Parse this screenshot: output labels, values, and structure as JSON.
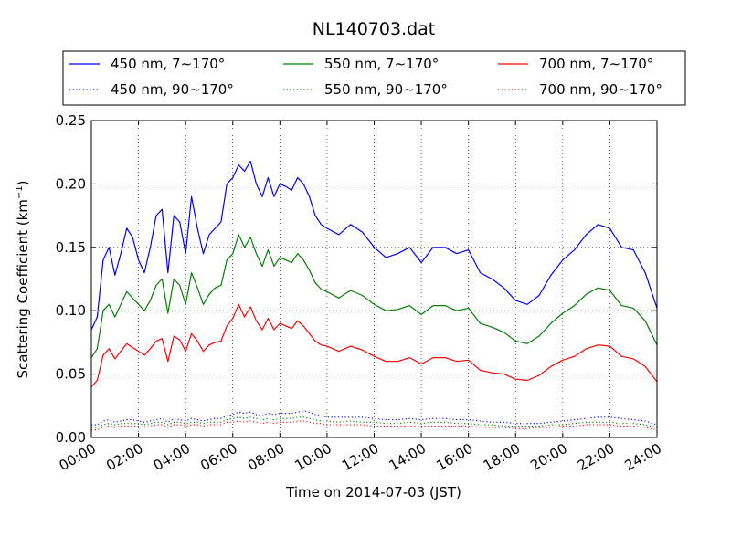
{
  "chart_data": {
    "type": "line",
    "title": "NL140703.dat",
    "xlabel": "Time on 2014-07-03 (JST)",
    "ylabel": "Scattering Coefficient (km",
    "ylabel_sup": "−1",
    "ylabel_close": ")",
    "xlim": [
      0,
      24
    ],
    "ylim": [
      0,
      0.25
    ],
    "grid": true,
    "legend_position": "top, above plot (3 columns)",
    "x_unit": "hour of day",
    "x_ticks": [
      0,
      2,
      4,
      6,
      8,
      10,
      12,
      14,
      16,
      18,
      20,
      22,
      24
    ],
    "x_tick_labels": [
      "00:00",
      "02:00",
      "04:00",
      "06:00",
      "08:00",
      "10:00",
      "12:00",
      "14:00",
      "16:00",
      "18:00",
      "20:00",
      "22:00",
      "24:00"
    ],
    "y_ticks": [
      0.0,
      0.05,
      0.1,
      0.15,
      0.2,
      0.25
    ],
    "y_tick_labels": [
      "0.00",
      "0.05",
      "0.10",
      "0.15",
      "0.20",
      "0.25"
    ],
    "x": [
      0.0,
      0.25,
      0.5,
      0.75,
      1.0,
      1.25,
      1.5,
      1.75,
      2.0,
      2.25,
      2.5,
      2.75,
      3.0,
      3.25,
      3.5,
      3.75,
      4.0,
      4.25,
      4.5,
      4.75,
      5.0,
      5.25,
      5.5,
      5.75,
      6.0,
      6.25,
      6.5,
      6.75,
      7.0,
      7.25,
      7.5,
      7.75,
      8.0,
      8.25,
      8.5,
      8.75,
      9.0,
      9.25,
      9.5,
      9.75,
      10.0,
      10.5,
      11.0,
      11.5,
      12.0,
      12.5,
      13.0,
      13.5,
      14.0,
      14.5,
      15.0,
      15.5,
      16.0,
      16.5,
      17.0,
      17.5,
      18.0,
      18.5,
      19.0,
      19.5,
      20.0,
      20.5,
      21.0,
      21.5,
      22.0,
      22.5,
      23.0,
      23.5,
      24.0
    ],
    "series": [
      {
        "name": "450 nm, 7∼170°",
        "color": "#0000ff",
        "style": "solid",
        "values": [
          0.085,
          0.095,
          0.14,
          0.15,
          0.128,
          0.145,
          0.165,
          0.158,
          0.14,
          0.13,
          0.15,
          0.175,
          0.18,
          0.13,
          0.175,
          0.17,
          0.145,
          0.19,
          0.165,
          0.145,
          0.16,
          0.165,
          0.17,
          0.2,
          0.205,
          0.215,
          0.21,
          0.218,
          0.2,
          0.19,
          0.205,
          0.19,
          0.2,
          0.198,
          0.195,
          0.205,
          0.2,
          0.19,
          0.175,
          0.168,
          0.165,
          0.16,
          0.168,
          0.162,
          0.15,
          0.142,
          0.145,
          0.15,
          0.138,
          0.15,
          0.15,
          0.145,
          0.148,
          0.13,
          0.125,
          0.118,
          0.108,
          0.105,
          0.112,
          0.128,
          0.14,
          0.148,
          0.16,
          0.168,
          0.165,
          0.15,
          0.148,
          0.13,
          0.102
        ]
      },
      {
        "name": "550 nm, 7∼170°",
        "color": "#008000",
        "style": "solid",
        "values": [
          0.063,
          0.07,
          0.1,
          0.105,
          0.095,
          0.105,
          0.115,
          0.11,
          0.105,
          0.1,
          0.108,
          0.12,
          0.125,
          0.098,
          0.125,
          0.12,
          0.105,
          0.13,
          0.118,
          0.105,
          0.113,
          0.118,
          0.12,
          0.14,
          0.145,
          0.16,
          0.15,
          0.158,
          0.145,
          0.135,
          0.148,
          0.135,
          0.142,
          0.14,
          0.138,
          0.145,
          0.14,
          0.132,
          0.122,
          0.117,
          0.115,
          0.11,
          0.116,
          0.112,
          0.105,
          0.1,
          0.101,
          0.104,
          0.097,
          0.104,
          0.104,
          0.1,
          0.102,
          0.09,
          0.087,
          0.083,
          0.076,
          0.074,
          0.08,
          0.09,
          0.098,
          0.104,
          0.113,
          0.118,
          0.116,
          0.104,
          0.102,
          0.092,
          0.073
        ]
      },
      {
        "name": "700 nm, 7∼170°",
        "color": "#ff0000",
        "style": "solid",
        "values": [
          0.04,
          0.045,
          0.065,
          0.07,
          0.062,
          0.068,
          0.074,
          0.071,
          0.068,
          0.065,
          0.07,
          0.076,
          0.078,
          0.06,
          0.08,
          0.077,
          0.068,
          0.082,
          0.076,
          0.068,
          0.073,
          0.075,
          0.076,
          0.088,
          0.094,
          0.105,
          0.095,
          0.103,
          0.092,
          0.085,
          0.094,
          0.085,
          0.09,
          0.088,
          0.086,
          0.092,
          0.088,
          0.082,
          0.076,
          0.073,
          0.072,
          0.068,
          0.072,
          0.069,
          0.064,
          0.06,
          0.06,
          0.063,
          0.058,
          0.063,
          0.063,
          0.06,
          0.061,
          0.053,
          0.051,
          0.05,
          0.046,
          0.045,
          0.049,
          0.056,
          0.061,
          0.064,
          0.07,
          0.073,
          0.072,
          0.064,
          0.062,
          0.056,
          0.044
        ]
      },
      {
        "name": "450 nm, 90∼170°",
        "color": "#0000ff",
        "style": "dotted",
        "values": [
          0.01,
          0.01,
          0.013,
          0.014,
          0.012,
          0.013,
          0.014,
          0.014,
          0.013,
          0.012,
          0.013,
          0.014,
          0.015,
          0.012,
          0.015,
          0.014,
          0.013,
          0.015,
          0.014,
          0.013,
          0.014,
          0.015,
          0.015,
          0.017,
          0.018,
          0.02,
          0.019,
          0.02,
          0.018,
          0.017,
          0.019,
          0.018,
          0.019,
          0.019,
          0.019,
          0.02,
          0.021,
          0.02,
          0.018,
          0.017,
          0.016,
          0.016,
          0.016,
          0.016,
          0.015,
          0.014,
          0.014,
          0.015,
          0.014,
          0.015,
          0.015,
          0.014,
          0.014,
          0.013,
          0.012,
          0.012,
          0.011,
          0.011,
          0.011,
          0.012,
          0.013,
          0.014,
          0.015,
          0.016,
          0.016,
          0.015,
          0.014,
          0.013,
          0.01
        ]
      },
      {
        "name": "550 nm, 90∼170°",
        "color": "#008000",
        "style": "dotted",
        "values": [
          0.008,
          0.008,
          0.01,
          0.011,
          0.01,
          0.011,
          0.011,
          0.011,
          0.011,
          0.01,
          0.011,
          0.012,
          0.012,
          0.01,
          0.012,
          0.012,
          0.011,
          0.012,
          0.012,
          0.011,
          0.012,
          0.012,
          0.012,
          0.014,
          0.015,
          0.016,
          0.015,
          0.016,
          0.015,
          0.014,
          0.015,
          0.014,
          0.015,
          0.015,
          0.015,
          0.016,
          0.016,
          0.015,
          0.014,
          0.013,
          0.013,
          0.012,
          0.013,
          0.012,
          0.012,
          0.011,
          0.011,
          0.012,
          0.011,
          0.012,
          0.012,
          0.011,
          0.011,
          0.01,
          0.01,
          0.009,
          0.009,
          0.009,
          0.009,
          0.01,
          0.01,
          0.011,
          0.012,
          0.012,
          0.012,
          0.011,
          0.011,
          0.01,
          0.008
        ]
      },
      {
        "name": "700 nm, 90∼170°",
        "color": "#ff0000",
        "style": "dotted",
        "values": [
          0.006,
          0.006,
          0.008,
          0.009,
          0.008,
          0.009,
          0.009,
          0.009,
          0.009,
          0.008,
          0.009,
          0.01,
          0.01,
          0.008,
          0.01,
          0.01,
          0.009,
          0.01,
          0.01,
          0.009,
          0.01,
          0.01,
          0.01,
          0.012,
          0.012,
          0.013,
          0.012,
          0.013,
          0.012,
          0.011,
          0.012,
          0.011,
          0.012,
          0.012,
          0.012,
          0.013,
          0.013,
          0.012,
          0.011,
          0.011,
          0.01,
          0.01,
          0.01,
          0.01,
          0.009,
          0.009,
          0.009,
          0.009,
          0.009,
          0.009,
          0.009,
          0.009,
          0.009,
          0.008,
          0.008,
          0.008,
          0.007,
          0.007,
          0.008,
          0.008,
          0.009,
          0.009,
          0.01,
          0.01,
          0.01,
          0.009,
          0.009,
          0.008,
          0.006
        ]
      }
    ]
  }
}
